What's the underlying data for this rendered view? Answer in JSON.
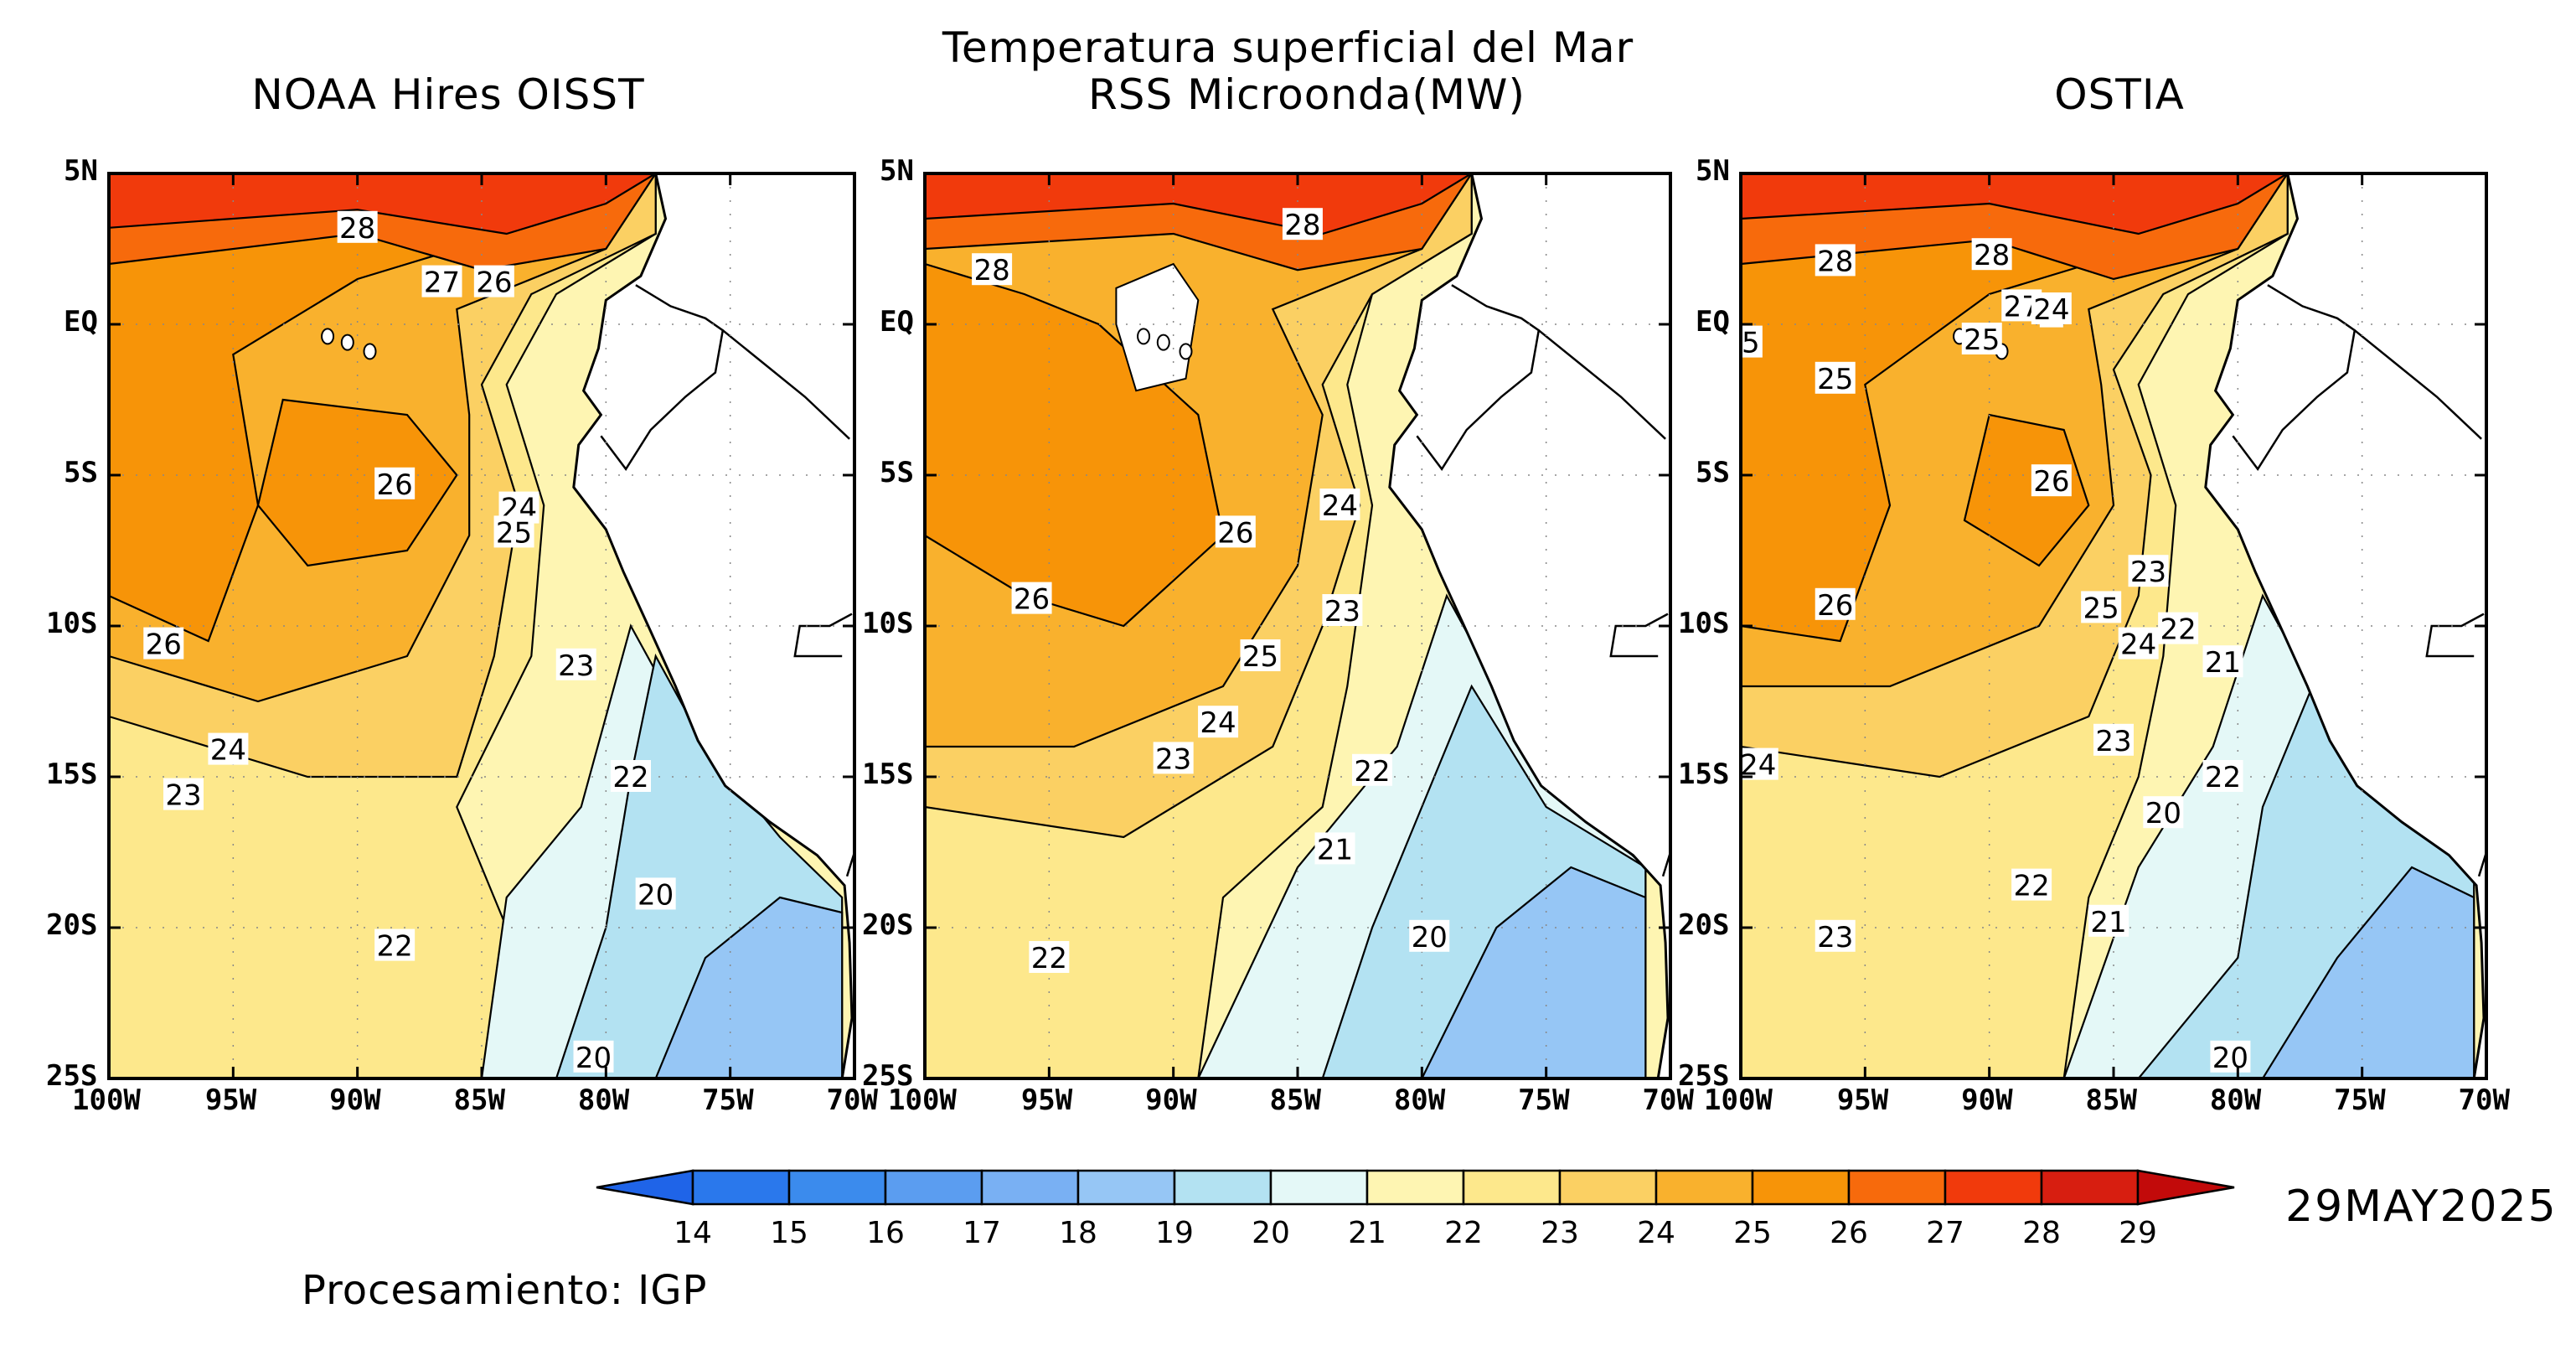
{
  "title": "Temperatura superficial del Mar",
  "panels": [
    {
      "name": "NOAA Hires OISST",
      "labels": [
        "28",
        "27",
        "26",
        "26",
        "24",
        "25",
        "26",
        "24",
        "23",
        "23",
        "22",
        "22",
        "20",
        "20"
      ]
    },
    {
      "name": "RSS Microonda(MW)",
      "labels": [
        "28",
        "28",
        "26",
        "26",
        "24",
        "23",
        "25",
        "24",
        "23",
        "22",
        "21",
        "22",
        "20"
      ]
    },
    {
      "name": "OSTIA",
      "labels": [
        "28",
        "28",
        "27",
        "6",
        "24",
        "25",
        "5",
        "25",
        "26",
        "26",
        "23",
        "25",
        "24",
        "22",
        "21",
        "23",
        "24",
        "20",
        "22",
        "22",
        "23",
        "21",
        "20"
      ]
    }
  ],
  "lat_ticks": [
    "5N",
    "EQ",
    "5S",
    "10S",
    "15S",
    "20S",
    "25S"
  ],
  "lon_ticks": [
    "100W",
    "95W",
    "90W",
    "85W",
    "80W",
    "75W",
    "70W"
  ],
  "colorbar": {
    "ticks": [
      "14",
      "15",
      "16",
      "17",
      "18",
      "19",
      "20",
      "21",
      "22",
      "23",
      "24",
      "25",
      "26",
      "27",
      "28",
      "29"
    ],
    "colors": [
      "#1f64e8",
      "#2a78ec",
      "#3b8bed",
      "#5b9df0",
      "#79b0f3",
      "#96c6f5",
      "#b3e2f2",
      "#e4f8f7",
      "#fef5b2",
      "#fde88c",
      "#fbd063",
      "#f9b12d",
      "#f79408",
      "#f76a0c",
      "#f13a0c",
      "#d71e10",
      "#c20a0a"
    ]
  },
  "date": "29MAY2025",
  "credit": "Procesamiento: IGP"
}
